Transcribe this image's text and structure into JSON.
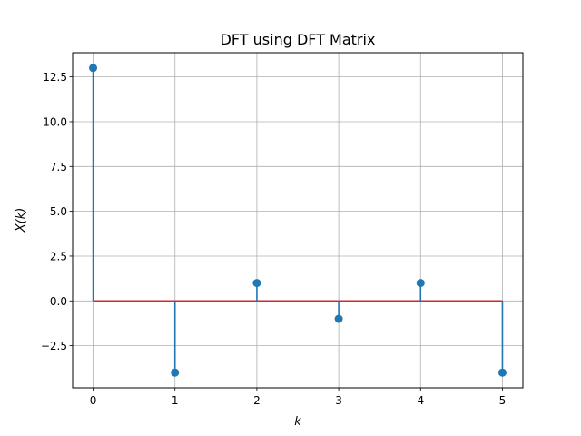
{
  "chart_data": {
    "type": "stem",
    "title": "DFT using DFT Matrix",
    "xlabel": "k",
    "ylabel": "X(k)",
    "x": [
      0,
      1,
      2,
      3,
      4,
      5
    ],
    "y": [
      13,
      -4,
      1,
      -1,
      1,
      -4
    ],
    "xlim": [
      -0.25,
      5.25
    ],
    "ylim": [
      -4.85,
      13.85
    ],
    "xticks": [
      0,
      1,
      2,
      3,
      4,
      5
    ],
    "xtick_labels": [
      "0",
      "1",
      "2",
      "3",
      "4",
      "5"
    ],
    "yticks": [
      -2.5,
      0.0,
      2.5,
      5.0,
      7.5,
      10.0,
      12.5
    ],
    "ytick_labels": [
      "−2.5",
      "0.0",
      "2.5",
      "5.0",
      "7.5",
      "10.0",
      "12.5"
    ],
    "grid": true,
    "colors": {
      "stem": "#1f77b4",
      "baseline": "#d62728",
      "grid": "#b0b0b0"
    }
  }
}
